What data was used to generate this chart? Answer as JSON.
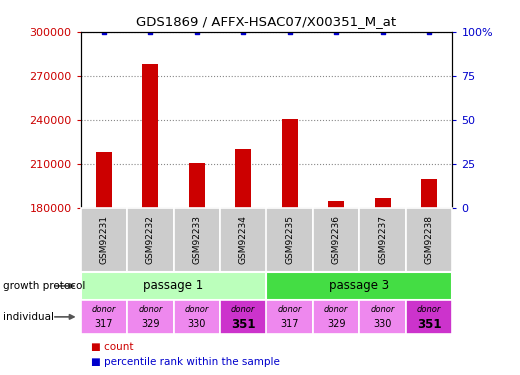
{
  "title": "GDS1869 / AFFX-HSAC07/X00351_M_at",
  "samples": [
    "GSM92231",
    "GSM92232",
    "GSM92233",
    "GSM92234",
    "GSM92235",
    "GSM92236",
    "GSM92237",
    "GSM92238"
  ],
  "counts": [
    218000,
    278000,
    211000,
    220000,
    241000,
    185000,
    187000,
    200000
  ],
  "percentiles": [
    100,
    100,
    100,
    100,
    100,
    100,
    100,
    100
  ],
  "ymin": 180000,
  "ymax": 300000,
  "yticks_left": [
    180000,
    210000,
    240000,
    270000,
    300000
  ],
  "right_yticks": [
    0,
    25,
    50,
    75,
    100
  ],
  "right_yticklabels": [
    "0",
    "25",
    "50",
    "75",
    "100%"
  ],
  "bar_color": "#cc0000",
  "dot_color": "#0000cc",
  "passage1_color": "#bbffbb",
  "passage3_color": "#44dd44",
  "donor_light_color": "#ee88ee",
  "donor_dark_color": "#cc33cc",
  "donors": [
    "317",
    "329",
    "330",
    "351",
    "317",
    "329",
    "330",
    "351"
  ],
  "donor_bold": [
    "351"
  ],
  "sample_bg_color": "#cccccc",
  "left_tick_color": "#cc0000",
  "right_tick_color": "#0000cc",
  "grid_color": "#888888",
  "legend_count_color": "#cc0000",
  "legend_pct_color": "#0000cc",
  "bar_width": 0.35,
  "figsize": [
    5.2,
    3.75
  ],
  "dpi": 100
}
